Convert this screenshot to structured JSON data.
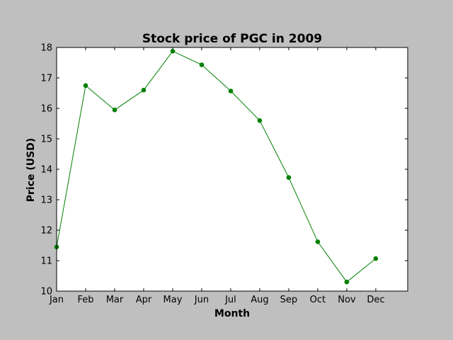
{
  "chart_data": {
    "type": "line",
    "title": "Stock price of PGC in 2009",
    "xlabel": "Month",
    "ylabel": "Price (USD)",
    "categories": [
      "Jan",
      "Feb",
      "Mar",
      "Apr",
      "May",
      "Jun",
      "Jul",
      "Aug",
      "Sep",
      "Oct",
      "Nov",
      "Dec"
    ],
    "series": [
      {
        "values": [
          11.45,
          16.75,
          15.95,
          16.6,
          17.88,
          17.43,
          16.57,
          15.6,
          13.73,
          11.62,
          10.3,
          11.07
        ],
        "color": "#008000"
      }
    ],
    "ylim": [
      10,
      18
    ],
    "yticks": [
      10,
      11,
      12,
      13,
      14,
      15,
      16,
      17,
      18
    ],
    "grid": false,
    "legend": "none",
    "background_color": "#bfbfbf",
    "plot_background": "#ffffff"
  }
}
